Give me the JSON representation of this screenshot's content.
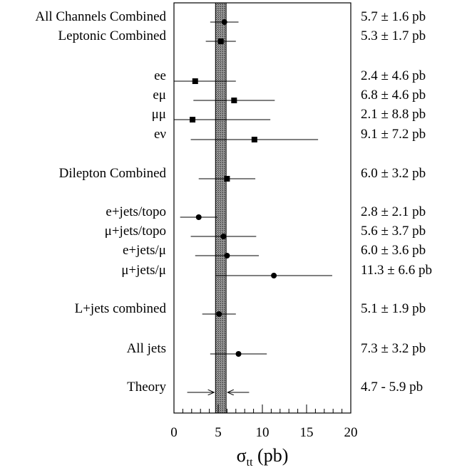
{
  "chart_data": {
    "type": "scatter",
    "orientation": "horizontal-error-bars",
    "xlabel_symbol": "σ",
    "xlabel_subscript": "tt",
    "xlabel_unit": " (pb)",
    "xlim": [
      0,
      20
    ],
    "xticks": [
      0,
      5,
      10,
      15,
      20
    ],
    "grid": false,
    "theory_band": [
      4.7,
      5.9
    ],
    "rows": [
      {
        "label": "All Channels Combined",
        "value": 5.7,
        "err": 1.6,
        "marker": "circle",
        "text": "5.7 ± 1.6 pb"
      },
      {
        "label": "Leptonic Combined",
        "value": 5.3,
        "err": 1.7,
        "marker": "square",
        "text": "5.3 ± 1.7 pb"
      },
      {
        "label": "ee",
        "value": 2.4,
        "err": 4.6,
        "marker": "square",
        "text": "2.4 ± 4.6 pb"
      },
      {
        "label": "eμ",
        "value": 6.8,
        "err": 4.6,
        "marker": "square",
        "text": "6.8 ± 4.6 pb"
      },
      {
        "label": "μμ",
        "value": 2.1,
        "err": 8.8,
        "marker": "square",
        "text": "2.1 ± 8.8 pb"
      },
      {
        "label": "eν",
        "value": 9.1,
        "err": 7.2,
        "marker": "square",
        "text": "9.1 ± 7.2 pb"
      },
      {
        "label": "Dilepton Combined",
        "value": 6.0,
        "err": 3.2,
        "marker": "square",
        "text": "6.0 ± 3.2 pb"
      },
      {
        "label": "e+jets/topo",
        "value": 2.8,
        "err": 2.1,
        "marker": "circle",
        "text": "2.8 ± 2.1 pb"
      },
      {
        "label": "μ+jets/topo",
        "value": 5.6,
        "err": 3.7,
        "marker": "circle",
        "text": "5.6 ± 3.7 pb"
      },
      {
        "label": "e+jets/μ",
        "value": 6.0,
        "err": 3.6,
        "marker": "circle",
        "text": "6.0 ± 3.6 pb"
      },
      {
        "label": "μ+jets/μ",
        "value": 11.3,
        "err": 6.6,
        "marker": "circle",
        "text": "11.3 ± 6.6 pb"
      },
      {
        "label": "L+jets combined",
        "value": 5.1,
        "err": 1.9,
        "marker": "circle",
        "text": "5.1 ± 1.9 pb"
      },
      {
        "label": "All jets",
        "value": 7.3,
        "err": 3.2,
        "marker": "circle",
        "text": "7.3 ± 3.2 pb"
      },
      {
        "label": "Theory",
        "value": 5.3,
        "err": 0.6,
        "marker": "arrows",
        "text": "4.7 - 5.9 pb",
        "arrow_from": [
          1.5,
          8.5
        ]
      }
    ]
  }
}
